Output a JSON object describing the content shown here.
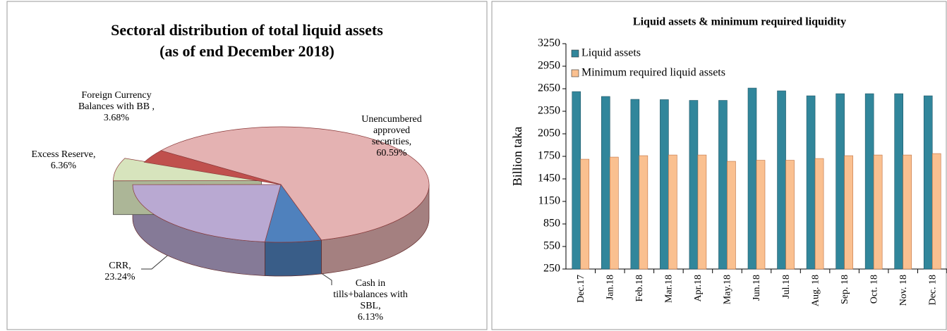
{
  "chart_data": [
    {
      "type": "pie",
      "title": "Sectoral distribution of total liquid assets",
      "subtitle": "(as of end December 2018)",
      "categories": [
        "Unencumbered approved securities,",
        "Cash in tills+balances with SBL,",
        "CRR,",
        "Excess Reserve,",
        "Foreign Currency Balances with BB ,"
      ],
      "values": [
        60.59,
        6.13,
        23.24,
        6.36,
        3.68
      ],
      "value_labels": [
        "60.59%",
        "6.13%",
        "23.24%",
        "6.36%",
        "3.68%"
      ],
      "colors": [
        "#e4b2b2",
        "#4f81bd",
        "#b9a9d2",
        "#d7e4bd",
        "#c0504d"
      ]
    },
    {
      "type": "bar",
      "title": "Liquid assets & minimum required liquidity",
      "ylabel": "Billion taka",
      "categories": [
        "Dec.17",
        "Jan.18",
        "Feb.18",
        "Mar.18",
        "Apr.18",
        "May.18",
        "Jun.18",
        "Jul.18",
        "Aug. 18",
        "Sep. 18",
        "Oct. 18",
        "Nov. 18",
        "Dec. 18"
      ],
      "series": [
        {
          "name": "Liquid assets",
          "color": "#31869b",
          "values": [
            2612,
            2547,
            2509,
            2505,
            2495,
            2495,
            2659,
            2622,
            2556,
            2584,
            2584,
            2584,
            2556
          ]
        },
        {
          "name": "Minimum required liquid assets",
          "color": "#fac090",
          "values": [
            1712,
            1740,
            1759,
            1768,
            1768,
            1684,
            1698,
            1698,
            1721,
            1759,
            1768,
            1768,
            1787
          ]
        }
      ],
      "ylim": [
        250,
        3250
      ],
      "yticks": [
        250,
        550,
        850,
        1150,
        1450,
        1750,
        2050,
        2350,
        2650,
        2950,
        3250
      ],
      "legend": "upper left"
    }
  ]
}
